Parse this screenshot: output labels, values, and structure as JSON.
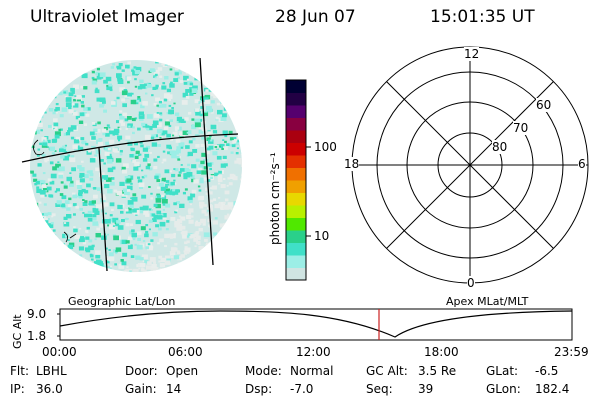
{
  "header": {
    "instrument": "Ultraviolet Imager",
    "date": "28 Jun 07",
    "time": "15:01:35 UT"
  },
  "colorbar": {
    "unit_label": "photon cm⁻²s⁻¹",
    "ticks": [
      "100",
      "10"
    ],
    "colors": [
      "#000033",
      "#220044",
      "#55006e",
      "#880040",
      "#aa0010",
      "#cc0000",
      "#e43000",
      "#f07000",
      "#f0a000",
      "#e8d800",
      "#b8f000",
      "#50e800",
      "#2ad08a",
      "#40e0c8",
      "#9ceee6",
      "#d0e4e2"
    ]
  },
  "polar_plot": {
    "mlt_labels": {
      "top": "12",
      "left": "18",
      "right": "6",
      "bottom": "0"
    },
    "lat_labels": [
      "60",
      "70",
      "80"
    ]
  },
  "left_image": {
    "corner_marks": [
      "C",
      "z",
      "y"
    ]
  },
  "timeline": {
    "left_title": "Geographic Lat/Lon",
    "right_title": "Apex MLat/MLT",
    "y_axis_label": "GC Alt",
    "y_ticks": [
      "9.0",
      "1.8"
    ],
    "x_ticks": [
      "00:00",
      "06:00",
      "12:00",
      "18:00",
      "23:59"
    ],
    "current_time_marker": "15:01"
  },
  "status": {
    "row1": [
      {
        "label": "Flt:",
        "value": "LBHL"
      },
      {
        "label": "Door:",
        "value": "Open"
      },
      {
        "label": "Mode:",
        "value": "Normal"
      },
      {
        "label": "GC Alt:",
        "value": "3.5 Re"
      },
      {
        "label": "GLat:",
        "value": "-6.5"
      }
    ],
    "row2": [
      {
        "label": "IP:",
        "value": "36.0"
      },
      {
        "label": "Gain:",
        "value": "14"
      },
      {
        "label": "Dsp:",
        "value": "-7.0"
      },
      {
        "label": "Seq:",
        "value": "39"
      },
      {
        "label": "GLon:",
        "value": "182.4"
      }
    ]
  }
}
